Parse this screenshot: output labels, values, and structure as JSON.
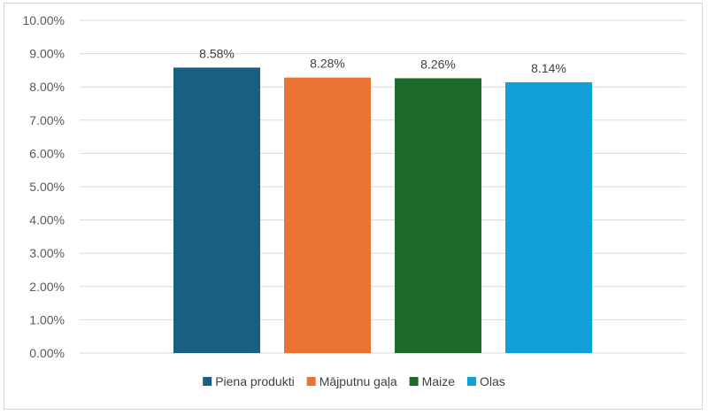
{
  "chart_data": {
    "type": "bar",
    "categories": [
      "Piena produkti",
      "Mājputnu gaļa",
      "Maize",
      "Olas"
    ],
    "series": [
      {
        "name": "Piena produkti",
        "value": 8.58,
        "label": "8.58%",
        "color": "#1a5e82"
      },
      {
        "name": "Mājputnu gaļa",
        "value": 8.28,
        "label": "8.28%",
        "color": "#ea7334"
      },
      {
        "name": "Maize",
        "value": 8.26,
        "label": "8.26%",
        "color": "#1c6b2a"
      },
      {
        "name": "Olas",
        "value": 8.14,
        "label": "8.14%",
        "color": "#119fd8"
      }
    ],
    "y_ticks": [
      {
        "value": 0,
        "label": "0.00%"
      },
      {
        "value": 1,
        "label": "1.00%"
      },
      {
        "value": 2,
        "label": "2.00%"
      },
      {
        "value": 3,
        "label": "3.00%"
      },
      {
        "value": 4,
        "label": "4.00%"
      },
      {
        "value": 5,
        "label": "5.00%"
      },
      {
        "value": 6,
        "label": "6.00%"
      },
      {
        "value": 7,
        "label": "7.00%"
      },
      {
        "value": 8,
        "label": "8.00%"
      },
      {
        "value": 9,
        "label": "9.00%"
      },
      {
        "value": 10,
        "label": "10.00%"
      }
    ],
    "ylim": [
      0,
      10
    ],
    "title": "",
    "xlabel": "",
    "ylabel": "",
    "grid": true,
    "legend_position": "bottom"
  }
}
